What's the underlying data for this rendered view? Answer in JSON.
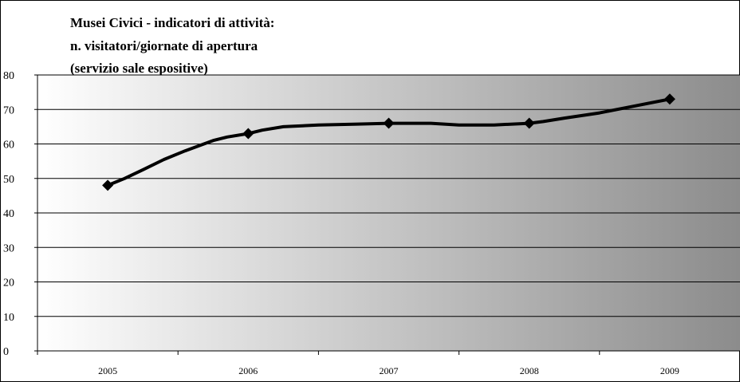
{
  "chart_data": {
    "type": "line",
    "title_lines": [
      "Musei Civici - indicatori di attività:",
      "n. visitatori/giornate di apertura",
      "(servizio sale espositive)"
    ],
    "xlabel": "",
    "ylabel": "",
    "ylim": [
      0,
      80
    ],
    "y_ticks": [
      0,
      10,
      20,
      30,
      40,
      50,
      60,
      70,
      80
    ],
    "categories": [
      "2005",
      "2006",
      "2007",
      "2008",
      "2009"
    ],
    "series": [
      {
        "values": [
          48,
          63,
          66,
          66,
          73
        ],
        "marker": "diamond"
      }
    ],
    "curve": [
      [
        0.0,
        48.0
      ],
      [
        0.12,
        50.0
      ],
      [
        0.25,
        52.5
      ],
      [
        0.4,
        55.5
      ],
      [
        0.55,
        58.0
      ],
      [
        0.65,
        59.5
      ],
      [
        0.75,
        61.0
      ],
      [
        0.85,
        62.0
      ],
      [
        1.0,
        63.0
      ],
      [
        1.1,
        64.0
      ],
      [
        1.25,
        65.0
      ],
      [
        1.5,
        65.5
      ],
      [
        1.75,
        65.7
      ],
      [
        2.0,
        66.0
      ],
      [
        2.3,
        66.0
      ],
      [
        2.5,
        65.5
      ],
      [
        2.75,
        65.5
      ],
      [
        3.0,
        66.0
      ],
      [
        3.1,
        66.5
      ],
      [
        3.25,
        67.5
      ],
      [
        3.5,
        69.0
      ],
      [
        3.75,
        71.0
      ],
      [
        4.0,
        73.0
      ]
    ],
    "grid": true,
    "legend": "none",
    "colors": {
      "plot_gradient_start": "#ffffff",
      "plot_gradient_end": "#8c8c8c",
      "line": "#000000"
    }
  }
}
